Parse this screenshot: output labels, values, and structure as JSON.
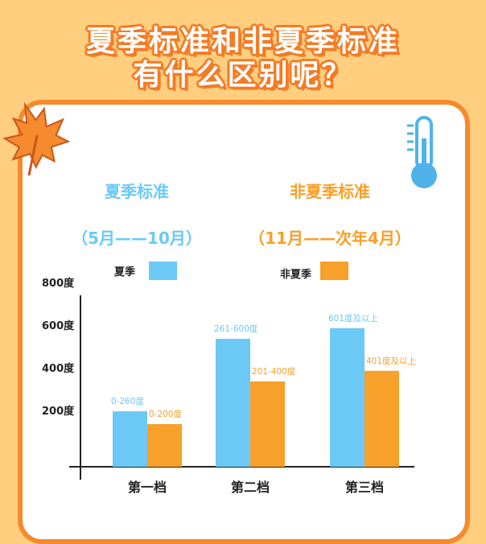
{
  "title": {
    "line1": "夏季标准和非夏季标准",
    "line2": "有什么区别呢？"
  },
  "headers": {
    "summer": {
      "name": "夏季标准",
      "period": "（5月——10月）",
      "color": "#6CC9F5"
    },
    "nonsummer": {
      "name": "非夏季标准",
      "period": "（11月——次年4月）",
      "color": "#F7A02A"
    }
  },
  "icons": {
    "leaf": "maple-leaf-icon",
    "thermometer": "thermometer-icon"
  },
  "chart_data": {
    "type": "bar",
    "categories": [
      "第一档",
      "第二档",
      "第三档"
    ],
    "y_ticks": [
      "200度",
      "400度",
      "600度",
      "800度"
    ],
    "ylim": [
      0,
      850
    ],
    "legend_placement": "top",
    "series": [
      {
        "name": "夏季",
        "color": "#6CC9F5",
        "values": [
          260,
          600,
          650
        ],
        "labels": [
          "0-260度",
          "261-600度",
          "601度及以上"
        ]
      },
      {
        "name": "非夏季",
        "color": "#F7A02A",
        "values": [
          200,
          400,
          450
        ],
        "labels": [
          "0-200度",
          "201-400度",
          "401度及以上"
        ]
      }
    ]
  }
}
